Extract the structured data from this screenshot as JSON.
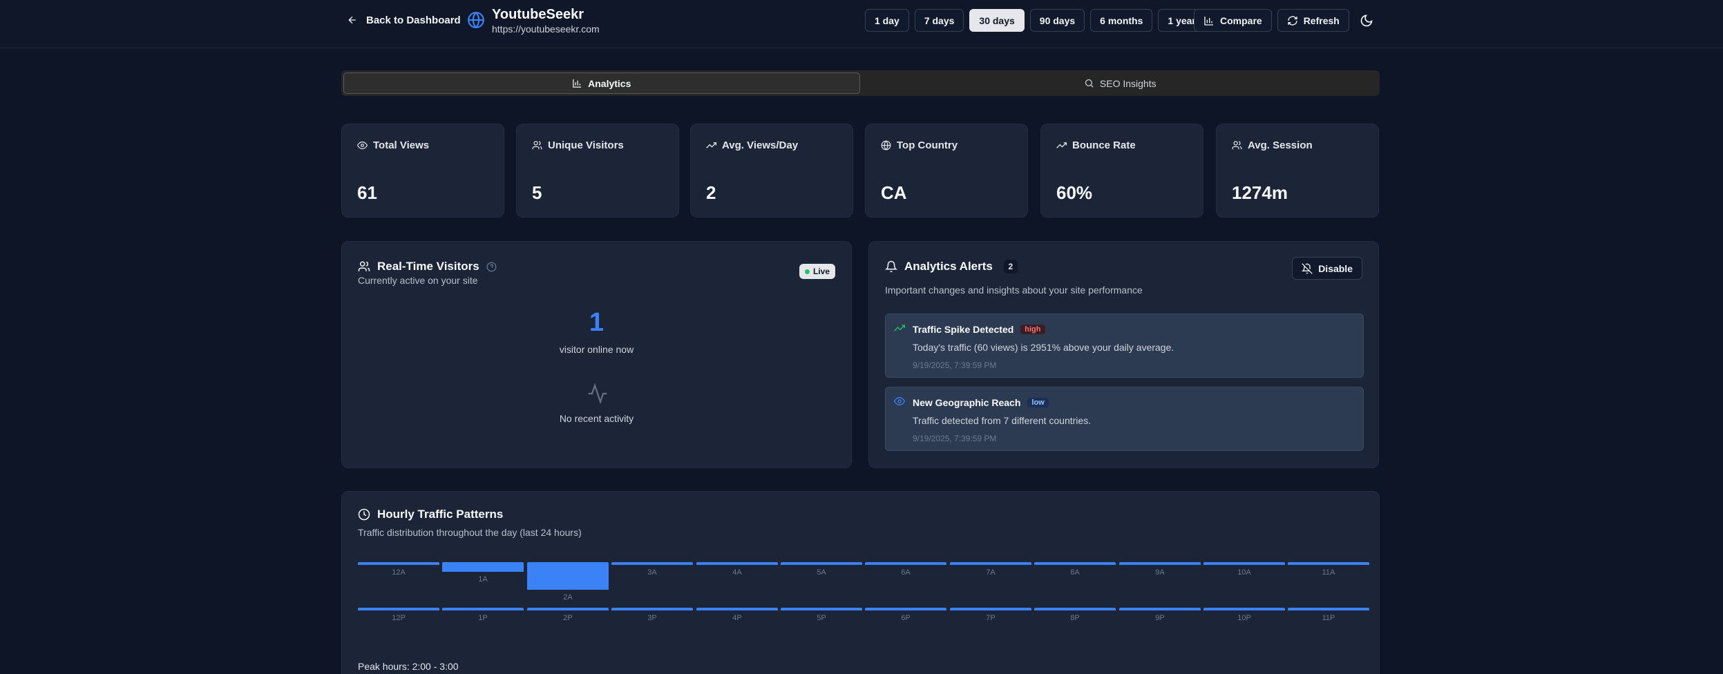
{
  "header": {
    "back_label": "Back to Dashboard",
    "site_name": "YoutubeSeekr",
    "site_url": "https://youtubeseekr.com",
    "ranges": [
      "1 day",
      "7 days",
      "30 days",
      "90 days",
      "6 months",
      "1 year"
    ],
    "active_range": "30 days",
    "compare_label": "Compare",
    "refresh_label": "Refresh"
  },
  "tabs": {
    "analytics": "Analytics",
    "seo": "SEO Insights",
    "active": "analytics"
  },
  "stats": [
    {
      "label": "Total Views",
      "value": "61",
      "icon": "eye-icon"
    },
    {
      "label": "Unique Visitors",
      "value": "5",
      "icon": "users-icon"
    },
    {
      "label": "Avg. Views/Day",
      "value": "2",
      "icon": "trending-up-icon"
    },
    {
      "label": "Top Country",
      "value": "CA",
      "icon": "globe-icon"
    },
    {
      "label": "Bounce Rate",
      "value": "60%",
      "icon": "trending-up-icon"
    },
    {
      "label": "Avg. Session",
      "value": "1274m",
      "icon": "users-icon"
    }
  ],
  "realtime": {
    "title": "Real-Time Visitors",
    "subtitle": "Currently active on your site",
    "live_label": "Live",
    "count": "1",
    "count_label": "visitor online now",
    "empty_label": "No recent activity"
  },
  "alerts": {
    "title": "Analytics Alerts",
    "count": "2",
    "disable_label": "Disable",
    "subtitle": "Important changes and insights about your site performance",
    "items": [
      {
        "title": "Traffic Spike Detected",
        "severity": "high",
        "message": "Today's traffic (60 views) is 2951% above your daily average.",
        "time": "9/19/2025, 7:39:59 PM",
        "icon": "trending-up-icon",
        "color": "#22c55e"
      },
      {
        "title": "New Geographic Reach",
        "severity": "low",
        "message": "Traffic detected from 7 different countries.",
        "time": "9/19/2025, 7:39:59 PM",
        "icon": "eye-icon",
        "color": "#3b82f6"
      }
    ]
  },
  "hourly": {
    "title": "Hourly Traffic Patterns",
    "subtitle": "Traffic distribution throughout the day (last 24 hours)",
    "labels_am": [
      "12A",
      "1A",
      "2A",
      "3A",
      "4A",
      "5A",
      "6A",
      "7A",
      "8A",
      "9A",
      "10A",
      "11A"
    ],
    "labels_pm": [
      "12P",
      "1P",
      "2P",
      "3P",
      "4P",
      "5P",
      "6P",
      "7P",
      "8P",
      "9P",
      "10P",
      "11P"
    ],
    "levels_am": [
      0.1,
      0.35,
      1.0,
      0.1,
      0.1,
      0.1,
      0.1,
      0.1,
      0.1,
      0.1,
      0.1,
      0.1
    ],
    "levels_pm": [
      0.1,
      0.1,
      0.1,
      0.1,
      0.1,
      0.1,
      0.1,
      0.1,
      0.1,
      0.1,
      0.1,
      0.1
    ],
    "peak_label": "Peak hours: 2:00 - 3:00"
  }
}
